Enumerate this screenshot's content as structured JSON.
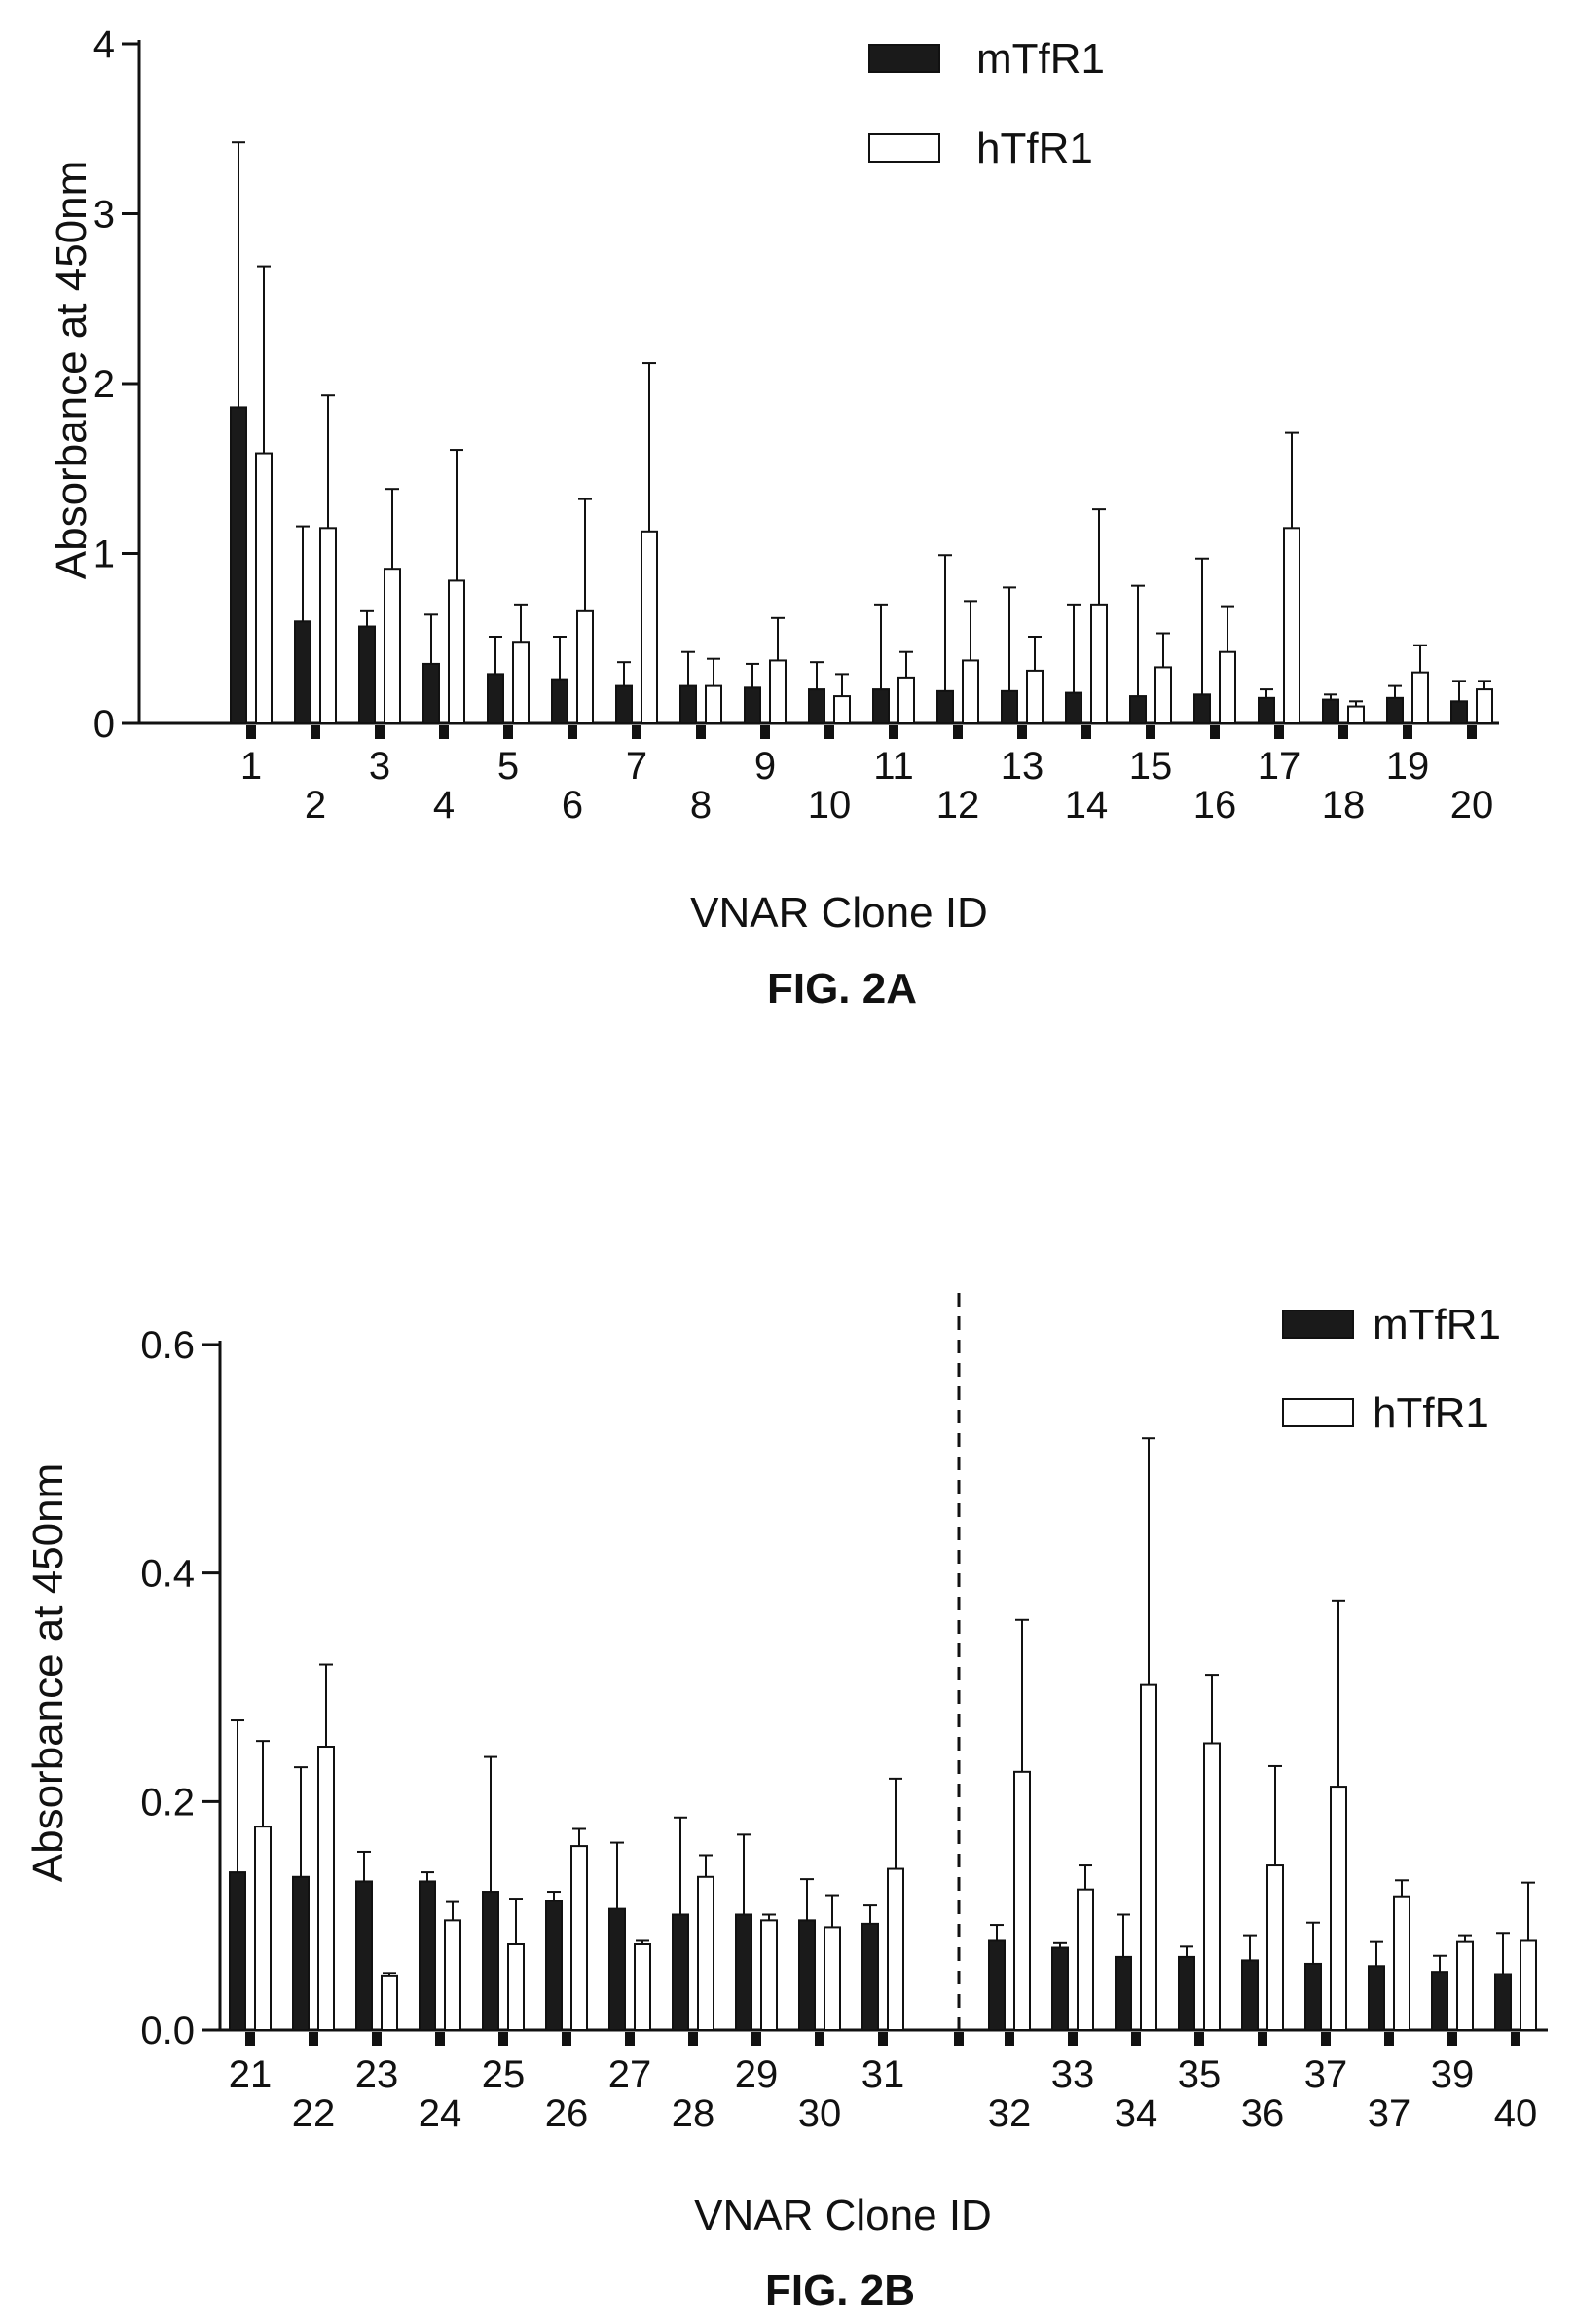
{
  "colors": {
    "mTfR1_fill": "#1a1a1a",
    "hTfR1_fill": "#ffffff",
    "stroke": "#111111"
  },
  "chart_data": [
    {
      "type": "bar",
      "caption": "FIG. 2A",
      "xlabel": "VNAR Clone ID",
      "ylabel": "Absorbance at 450nm",
      "ylim": [
        0,
        4
      ],
      "yticks": [
        "0",
        "1",
        "2",
        "3",
        "4"
      ],
      "legend": {
        "placement": "top-right",
        "entries": [
          "mTfR1",
          "hTfR1"
        ]
      },
      "error_bars": "upper",
      "categories": [
        "1",
        "2",
        "3",
        "4",
        "5",
        "6",
        "7",
        "8",
        "9",
        "10",
        "11",
        "12",
        "13",
        "14",
        "15",
        "16",
        "17",
        "18",
        "19",
        "20"
      ],
      "series": [
        {
          "name": "mTfR1",
          "values": [
            1.86,
            0.6,
            0.57,
            0.35,
            0.29,
            0.26,
            0.22,
            0.22,
            0.21,
            0.2,
            0.2,
            0.19,
            0.19,
            0.18,
            0.16,
            0.17,
            0.15,
            0.14,
            0.15,
            0.13
          ],
          "errors": [
            1.56,
            0.56,
            0.09,
            0.29,
            0.22,
            0.25,
            0.14,
            0.2,
            0.14,
            0.16,
            0.5,
            0.8,
            0.61,
            0.52,
            0.65,
            0.8,
            0.05,
            0.03,
            0.07,
            0.12
          ]
        },
        {
          "name": "hTfR1",
          "values": [
            1.59,
            1.15,
            0.91,
            0.84,
            0.48,
            0.66,
            1.13,
            0.22,
            0.37,
            0.16,
            0.27,
            0.37,
            0.31,
            0.7,
            0.33,
            0.42,
            1.15,
            0.1,
            0.3,
            0.2
          ],
          "errors": [
            1.1,
            0.78,
            0.47,
            0.77,
            0.22,
            0.66,
            0.99,
            0.16,
            0.25,
            0.13,
            0.15,
            0.35,
            0.2,
            0.56,
            0.2,
            0.27,
            0.56,
            0.03,
            0.16,
            0.05
          ]
        }
      ]
    },
    {
      "type": "bar",
      "caption": "FIG. 2B",
      "xlabel": "VNAR Clone ID",
      "ylabel": "Absorbance at 450nm",
      "ylim": [
        0,
        0.6
      ],
      "yticks": [
        "0.0",
        "0.2",
        "0.4",
        "0.6"
      ],
      "legend": {
        "placement": "top-right",
        "entries": [
          "mTfR1",
          "hTfR1"
        ]
      },
      "error_bars": "upper",
      "separator": "dashed vertical line between clone 31 and clone 32",
      "categories": [
        "21",
        "22",
        "23",
        "24",
        "25",
        "26",
        "27",
        "28",
        "29",
        "30",
        "31",
        "32",
        "33",
        "34",
        "35",
        "36",
        "37",
        "37",
        "39",
        "40"
      ],
      "series": [
        {
          "name": "mTfR1",
          "values": [
            0.138,
            0.134,
            0.13,
            0.13,
            0.121,
            0.113,
            0.106,
            0.101,
            0.101,
            0.096,
            0.093,
            0.078,
            0.072,
            0.064,
            0.064,
            0.061,
            0.058,
            0.056,
            0.051,
            0.049
          ],
          "errors": [
            0.133,
            0.096,
            0.026,
            0.008,
            0.118,
            0.008,
            0.058,
            0.085,
            0.07,
            0.036,
            0.016,
            0.014,
            0.004,
            0.037,
            0.009,
            0.022,
            0.036,
            0.021,
            0.014,
            0.036
          ]
        },
        {
          "name": "hTfR1",
          "values": [
            0.178,
            0.248,
            0.047,
            0.096,
            0.075,
            0.161,
            0.075,
            0.134,
            0.096,
            0.09,
            0.141,
            0.226,
            0.123,
            0.302,
            0.251,
            0.144,
            0.213,
            0.117,
            0.077,
            0.078
          ],
          "errors": [
            0.075,
            0.072,
            0.003,
            0.016,
            0.04,
            0.015,
            0.003,
            0.019,
            0.005,
            0.028,
            0.079,
            0.133,
            0.021,
            0.216,
            0.06,
            0.087,
            0.163,
            0.014,
            0.006,
            0.051
          ]
        }
      ]
    }
  ]
}
